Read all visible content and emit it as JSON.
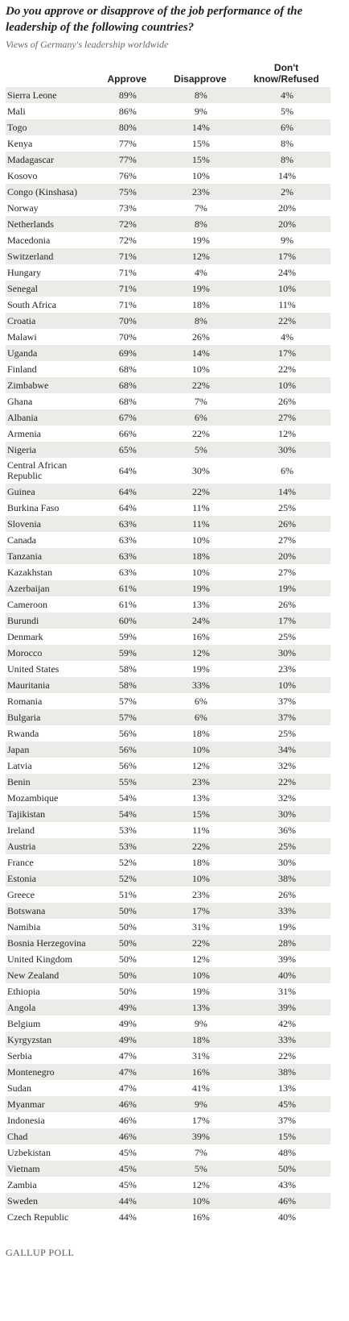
{
  "header": {
    "title": "Do you approve or disapprove of the job performance of the leadership of the following countries?",
    "subtitle": "Views of Germany's leadership worldwide"
  },
  "table": {
    "columns": [
      "",
      "Approve",
      "Disapprove",
      "Don't know/Refused"
    ],
    "rows": [
      [
        "Sierra Leone",
        "89%",
        "8%",
        "4%"
      ],
      [
        "Mali",
        "86%",
        "9%",
        "5%"
      ],
      [
        "Togo",
        "80%",
        "14%",
        "6%"
      ],
      [
        "Kenya",
        "77%",
        "15%",
        "8%"
      ],
      [
        "Madagascar",
        "77%",
        "15%",
        "8%"
      ],
      [
        "Kosovo",
        "76%",
        "10%",
        "14%"
      ],
      [
        "Congo (Kinshasa)",
        "75%",
        "23%",
        "2%"
      ],
      [
        "Norway",
        "73%",
        "7%",
        "20%"
      ],
      [
        "Netherlands",
        "72%",
        "8%",
        "20%"
      ],
      [
        "Macedonia",
        "72%",
        "19%",
        "9%"
      ],
      [
        "Switzerland",
        "71%",
        "12%",
        "17%"
      ],
      [
        "Hungary",
        "71%",
        "4%",
        "24%"
      ],
      [
        "Senegal",
        "71%",
        "19%",
        "10%"
      ],
      [
        "South Africa",
        "71%",
        "18%",
        "11%"
      ],
      [
        "Croatia",
        "70%",
        "8%",
        "22%"
      ],
      [
        "Malawi",
        "70%",
        "26%",
        "4%"
      ],
      [
        "Uganda",
        "69%",
        "14%",
        "17%"
      ],
      [
        "Finland",
        "68%",
        "10%",
        "22%"
      ],
      [
        "Zimbabwe",
        "68%",
        "22%",
        "10%"
      ],
      [
        "Ghana",
        "68%",
        "7%",
        "26%"
      ],
      [
        "Albania",
        "67%",
        "6%",
        "27%"
      ],
      [
        "Armenia",
        "66%",
        "22%",
        "12%"
      ],
      [
        "Nigeria",
        "65%",
        "5%",
        "30%"
      ],
      [
        "Central African Republic",
        "64%",
        "30%",
        "6%"
      ],
      [
        "Guinea",
        "64%",
        "22%",
        "14%"
      ],
      [
        "Burkina Faso",
        "64%",
        "11%",
        "25%"
      ],
      [
        "Slovenia",
        "63%",
        "11%",
        "26%"
      ],
      [
        "Canada",
        "63%",
        "10%",
        "27%"
      ],
      [
        "Tanzania",
        "63%",
        "18%",
        "20%"
      ],
      [
        "Kazakhstan",
        "63%",
        "10%",
        "27%"
      ],
      [
        "Azerbaijan",
        "61%",
        "19%",
        "19%"
      ],
      [
        "Cameroon",
        "61%",
        "13%",
        "26%"
      ],
      [
        "Burundi",
        "60%",
        "24%",
        "17%"
      ],
      [
        "Denmark",
        "59%",
        "16%",
        "25%"
      ],
      [
        "Morocco",
        "59%",
        "12%",
        "30%"
      ],
      [
        "United States",
        "58%",
        "19%",
        "23%"
      ],
      [
        "Mauritania",
        "58%",
        "33%",
        "10%"
      ],
      [
        "Romania",
        "57%",
        "6%",
        "37%"
      ],
      [
        "Bulgaria",
        "57%",
        "6%",
        "37%"
      ],
      [
        "Rwanda",
        "56%",
        "18%",
        "25%"
      ],
      [
        "Japan",
        "56%",
        "10%",
        "34%"
      ],
      [
        "Latvia",
        "56%",
        "12%",
        "32%"
      ],
      [
        "Benin",
        "55%",
        "23%",
        "22%"
      ],
      [
        "Mozambique",
        "54%",
        "13%",
        "32%"
      ],
      [
        "Tajikistan",
        "54%",
        "15%",
        "30%"
      ],
      [
        "Ireland",
        "53%",
        "11%",
        "36%"
      ],
      [
        "Austria",
        "53%",
        "22%",
        "25%"
      ],
      [
        "France",
        "52%",
        "18%",
        "30%"
      ],
      [
        "Estonia",
        "52%",
        "10%",
        "38%"
      ],
      [
        "Greece",
        "51%",
        "23%",
        "26%"
      ],
      [
        "Botswana",
        "50%",
        "17%",
        "33%"
      ],
      [
        "Namibia",
        "50%",
        "31%",
        "19%"
      ],
      [
        "Bosnia Herzegovina",
        "50%",
        "22%",
        "28%"
      ],
      [
        "United Kingdom",
        "50%",
        "12%",
        "39%"
      ],
      [
        "New Zealand",
        "50%",
        "10%",
        "40%"
      ],
      [
        "Ethiopia",
        "50%",
        "19%",
        "31%"
      ],
      [
        "Angola",
        "49%",
        "13%",
        "39%"
      ],
      [
        "Belgium",
        "49%",
        "9%",
        "42%"
      ],
      [
        "Kyrgyzstan",
        "49%",
        "18%",
        "33%"
      ],
      [
        "Serbia",
        "47%",
        "31%",
        "22%"
      ],
      [
        "Montenegro",
        "47%",
        "16%",
        "38%"
      ],
      [
        "Sudan",
        "47%",
        "41%",
        "13%"
      ],
      [
        "Myanmar",
        "46%",
        "9%",
        "45%"
      ],
      [
        "Indonesia",
        "46%",
        "17%",
        "37%"
      ],
      [
        "Chad",
        "46%",
        "39%",
        "15%"
      ],
      [
        "Uzbekistan",
        "45%",
        "7%",
        "48%"
      ],
      [
        "Vietnam",
        "45%",
        "5%",
        "50%"
      ],
      [
        "Zambia",
        "45%",
        "12%",
        "43%"
      ],
      [
        "Sweden",
        "44%",
        "10%",
        "46%"
      ],
      [
        "Czech Republic",
        "44%",
        "16%",
        "40%"
      ]
    ]
  },
  "footer": {
    "source": "GALLUP POLL"
  }
}
